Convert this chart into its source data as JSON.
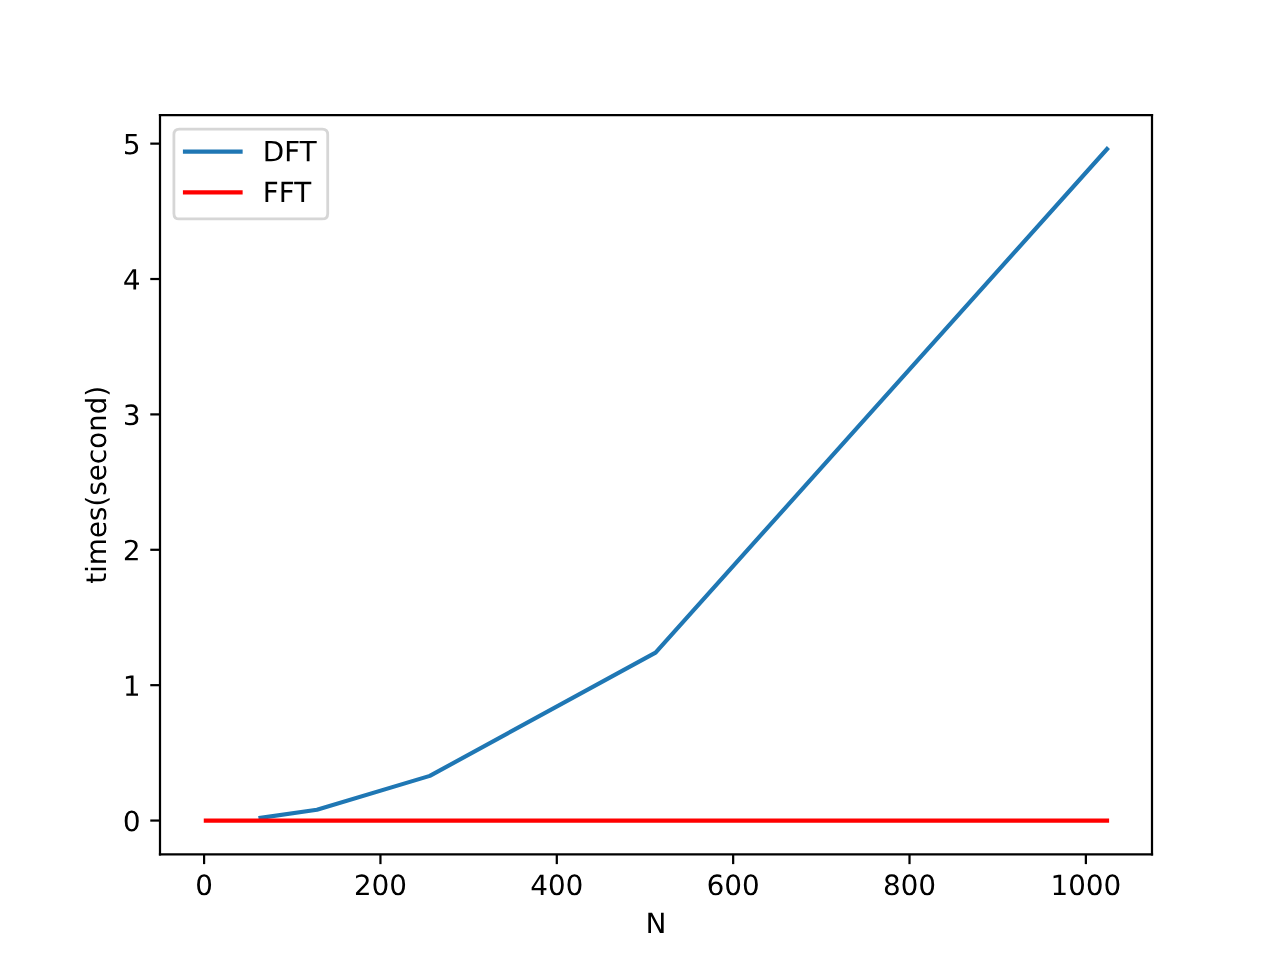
{
  "chart_data": {
    "type": "line",
    "xlabel": "N",
    "ylabel": "times(second)",
    "series": [
      {
        "name": "DFT",
        "color": "#1f77b4",
        "x": [
          64,
          128,
          256,
          512,
          1024
        ],
        "values": [
          0.02,
          0.08,
          0.33,
          1.24,
          4.96
        ]
      },
      {
        "name": "FFT",
        "color": "#ff0000",
        "x": [
          2,
          1024
        ],
        "values": [
          0,
          0
        ]
      }
    ],
    "xlim": [
      -50,
      1075
    ],
    "xticks": [
      0,
      200,
      400,
      600,
      800,
      1000
    ],
    "ylim": [
      -0.25,
      5.21
    ],
    "yticks": [
      0,
      1,
      2,
      3,
      4,
      5
    ],
    "legend": "top left",
    "grid": false
  }
}
